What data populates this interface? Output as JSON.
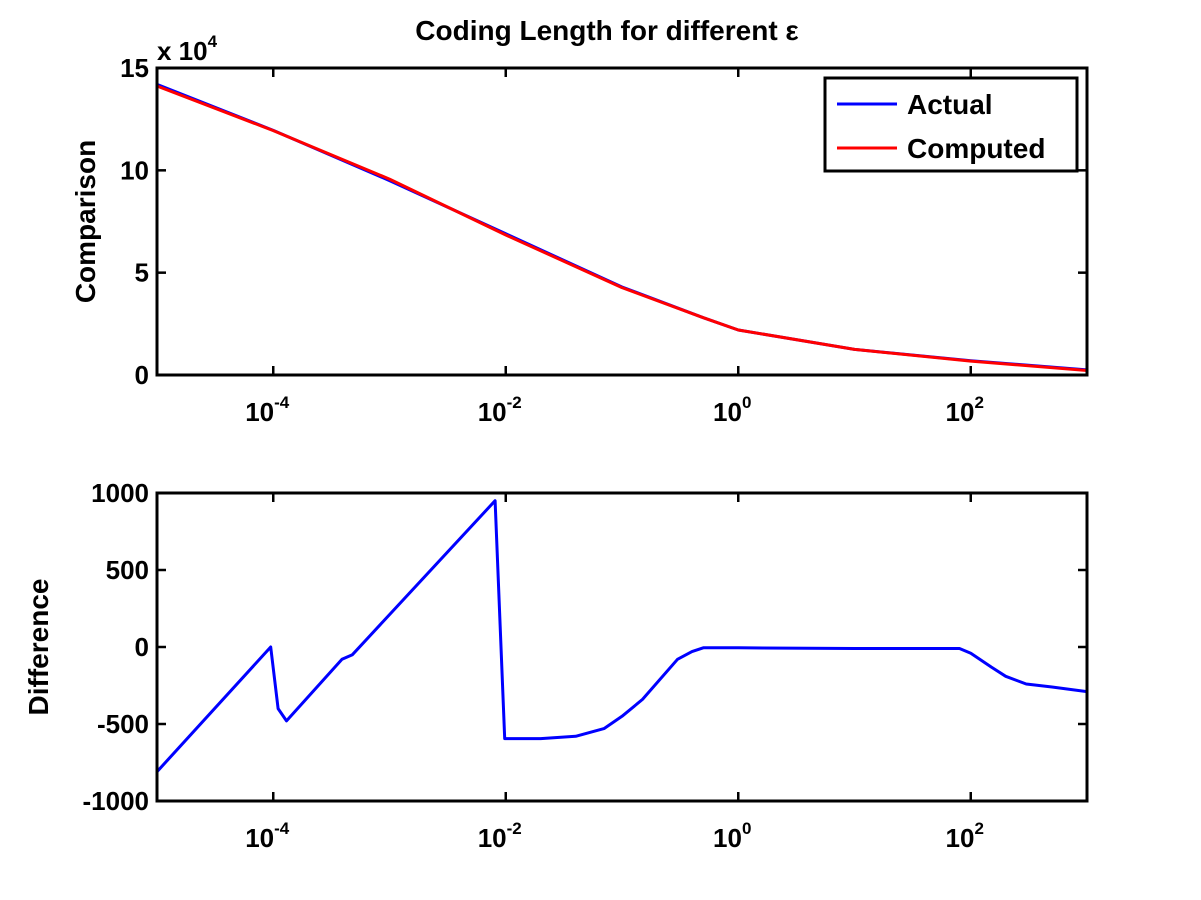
{
  "figure": {
    "title": "Coding Length for different ε"
  },
  "chart_data": [
    {
      "type": "line",
      "xscale": "log",
      "xlim": [
        1e-05,
        1000
      ],
      "ylim": [
        0,
        150000
      ],
      "x_ticks": [
        {
          "value": 0.0001,
          "base": "10",
          "exp": "-4"
        },
        {
          "value": 0.01,
          "base": "10",
          "exp": "-2"
        },
        {
          "value": 1,
          "base": "10",
          "exp": "0"
        },
        {
          "value": 100,
          "base": "10",
          "exp": "2"
        }
      ],
      "y_ticks": [
        {
          "value": 0,
          "label": "0"
        },
        {
          "value": 50000,
          "label": "5"
        },
        {
          "value": 100000,
          "label": "10"
        },
        {
          "value": 150000,
          "label": "15"
        }
      ],
      "y_multiplier": {
        "prefix": "x 10",
        "exp": "4"
      },
      "ylabel": "Comparison",
      "xlabel": "",
      "legend": {
        "position": "top-right",
        "entries": [
          "Actual",
          "Computed"
        ]
      },
      "grid": false,
      "series": [
        {
          "name": "Actual",
          "color": "#0000ff",
          "x": [
            1e-05,
            0.0001,
            0.001,
            0.01,
            0.1,
            0.5,
            1,
            10,
            100,
            1000
          ],
          "y": [
            142000,
            119500,
            95000,
            69000,
            43000,
            28000,
            22000,
            12500,
            7000,
            2500
          ]
        },
        {
          "name": "Computed",
          "color": "#ff0000",
          "x": [
            1e-05,
            0.0001,
            0.001,
            0.01,
            0.1,
            0.5,
            1,
            10,
            100,
            1000
          ],
          "y": [
            141200,
            119400,
            95700,
            68400,
            42700,
            28000,
            22000,
            12500,
            6800,
            2200
          ]
        }
      ]
    },
    {
      "type": "line",
      "xscale": "log",
      "xlim": [
        1e-05,
        1000
      ],
      "ylim": [
        -1000,
        1000
      ],
      "x_ticks": [
        {
          "value": 0.0001,
          "base": "10",
          "exp": "-4"
        },
        {
          "value": 0.01,
          "base": "10",
          "exp": "-2"
        },
        {
          "value": 1,
          "base": "10",
          "exp": "0"
        },
        {
          "value": 100,
          "base": "10",
          "exp": "2"
        }
      ],
      "y_ticks": [
        {
          "value": -1000,
          "label": "-1000"
        },
        {
          "value": -500,
          "label": "-500"
        },
        {
          "value": 0,
          "label": "0"
        },
        {
          "value": 500,
          "label": "500"
        },
        {
          "value": 1000,
          "label": "1000"
        }
      ],
      "ylabel": "Difference",
      "xlabel": "",
      "grid": false,
      "series": [
        {
          "color": "#0000ff",
          "x": [
            1e-05,
            9.5e-05,
            0.00011,
            0.00013,
            0.00039,
            0.00048,
            0.0081,
            0.0098,
            0.02,
            0.04,
            0.07,
            0.1,
            0.15,
            0.3,
            0.4,
            0.5,
            1,
            10,
            80,
            100,
            150,
            200,
            300,
            500,
            1000
          ],
          "y": [
            -810,
            0,
            -400,
            -480,
            -80,
            -50,
            950,
            -595,
            -595,
            -580,
            -530,
            -450,
            -340,
            -80,
            -30,
            -5,
            -5,
            -10,
            -10,
            -40,
            -130,
            -190,
            -240,
            -260,
            -290
          ]
        }
      ]
    }
  ]
}
